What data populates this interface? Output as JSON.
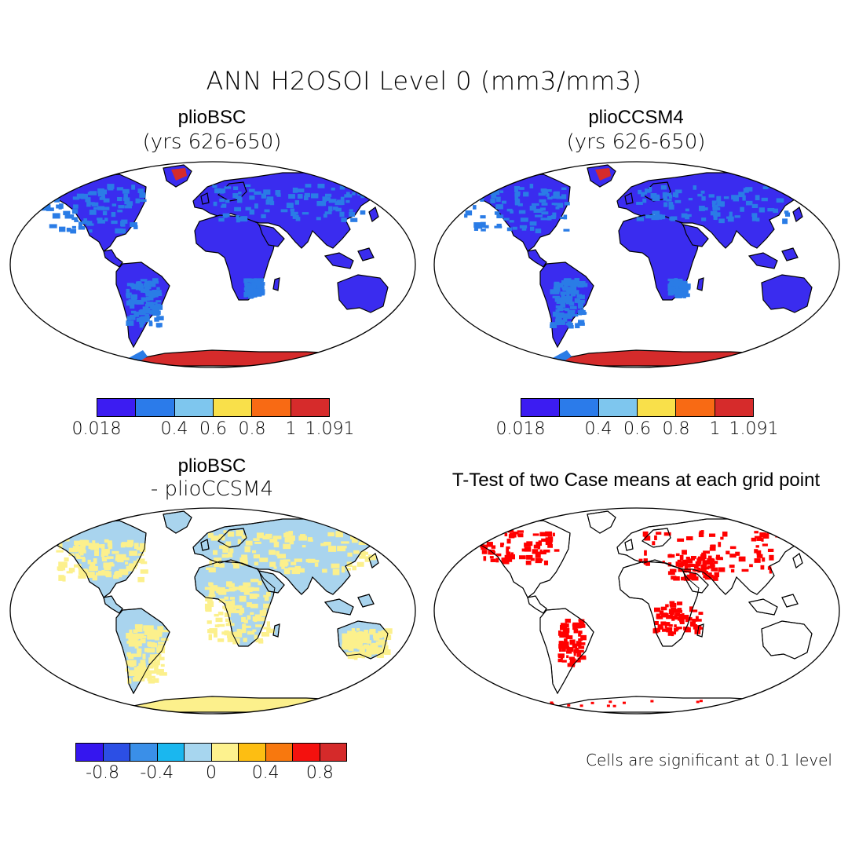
{
  "figure": {
    "title": "ANN H2OSOI Level 0 (mm3/mm3)"
  },
  "panels": [
    {
      "title": "plioBSC",
      "subtitle": "(yrs 626-650)",
      "field": "absolute"
    },
    {
      "title": "plioCCSM4",
      "subtitle": "(yrs 626-650)",
      "field": "absolute"
    },
    {
      "title": "plioBSC",
      "subtitle": "- plioCCSM4",
      "field": "difference"
    },
    {
      "title": "T-Test of two Case means at each grid point",
      "subtitle": "",
      "field": "significance"
    }
  ],
  "colorbar_abs": {
    "colors": [
      "#3c1cf2",
      "#2b7bea",
      "#7ec6ee",
      "#f9e04a",
      "#f86a14",
      "#d62b2b"
    ],
    "ticks": [
      "0.018",
      "0.4",
      "0.6",
      "0.8",
      "1",
      "1.091"
    ]
  },
  "colorbar_diff": {
    "colors": [
      "#3516ef",
      "#2c4fe5",
      "#3a8fe8",
      "#1ab7ef",
      "#a7d6ef",
      "#fdf28e",
      "#fdbe12",
      "#f8780e",
      "#f4110e",
      "#d52a2a"
    ],
    "ticks": [
      "-0.8",
      "-0.4",
      "0",
      "0.4",
      "0.8"
    ]
  },
  "significance_note": "Cells are significant at 0.1 level",
  "map_colors": {
    "ocean": "#ffffff",
    "abs_land": "#3a2cef",
    "abs_land_patch": "#2a7ce6",
    "abs_ice": "#d52b2b",
    "diff_land": "#a9d4ee",
    "diff_patch": "#fcf08c",
    "sig_cells": "#ff0000"
  }
}
